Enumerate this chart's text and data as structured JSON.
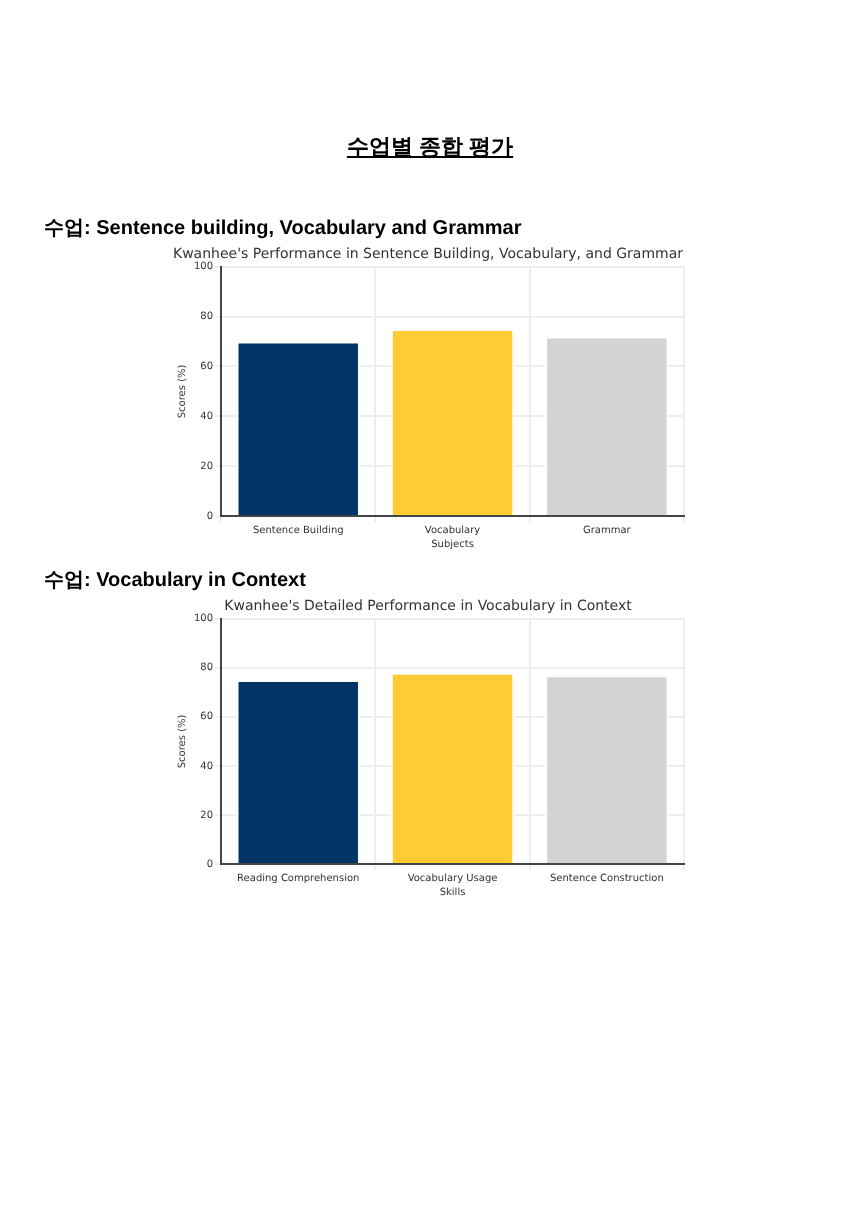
{
  "chart_data": [
    {
      "type": "bar",
      "annotations": [
        "수업별 종합 평가",
        "수업: Sentence building, Vocabulary and Grammar"
      ],
      "title": "Kwanhee's Performance in Sentence Building, Vocabulary, and Grammar",
      "xlabel": "Subjects",
      "ylabel": "Scores (%)",
      "categories": [
        "Sentence Building",
        "Vocabulary",
        "Grammar"
      ],
      "values": [
        70,
        75,
        72
      ],
      "colors": [
        "#003366",
        "#ffcc33",
        "#d3d3d3"
      ],
      "ylim": [
        0,
        100
      ],
      "yticks": [
        0,
        20,
        40,
        60,
        80,
        100
      ],
      "grid": true
    },
    {
      "type": "bar",
      "annotations": [
        "수업: Vocabulary in Context"
      ],
      "title": "Kwanhee's Detailed Performance in Vocabulary in Context",
      "xlabel": "Skills",
      "ylabel": "Scores (%)",
      "categories": [
        "Reading Comprehension",
        "Vocabulary Usage",
        "Sentence Construction"
      ],
      "values": [
        75,
        78,
        77
      ],
      "colors": [
        "#003366",
        "#ffcc33",
        "#d3d3d3"
      ],
      "ylim": [
        0,
        100
      ],
      "yticks": [
        0,
        20,
        40,
        60,
        80,
        100
      ],
      "grid": true
    }
  ]
}
